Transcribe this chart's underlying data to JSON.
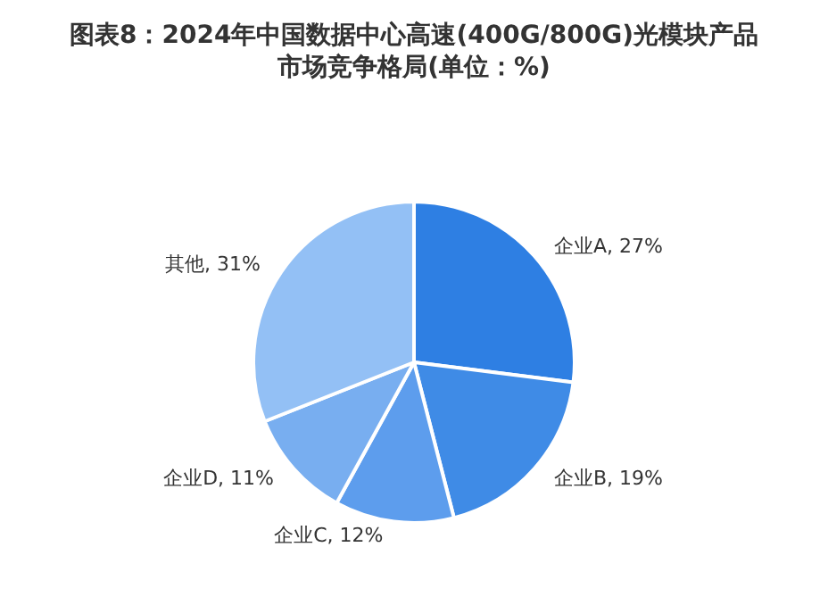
{
  "chart_data": {
    "type": "pie",
    "title": "图表8：2024年中国数据中心高速(400G/800G)光模块产品市场竞争格局(单位：%)",
    "categories": [
      "企业A",
      "企业B",
      "企业C",
      "企业D",
      "其他"
    ],
    "values": [
      27,
      19,
      12,
      11,
      31
    ],
    "colors": [
      "#2e7fe3",
      "#3f8be6",
      "#5d9ded",
      "#78aef0",
      "#93c0f5"
    ],
    "value_labels": [
      "27%",
      "19%",
      "12%",
      "11%",
      "31%"
    ],
    "legend": false
  }
}
